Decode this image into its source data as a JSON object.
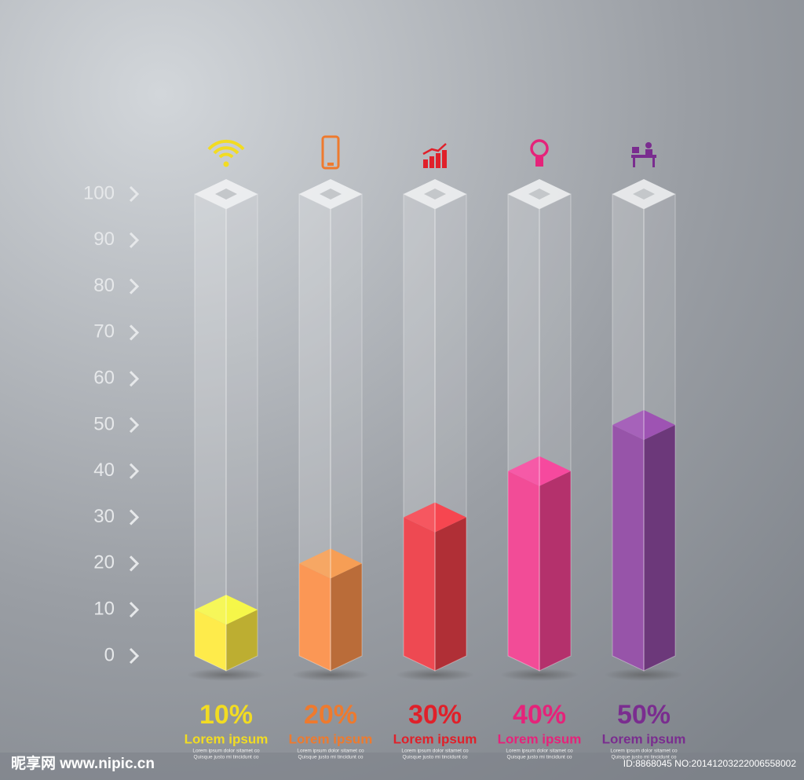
{
  "chart_data": {
    "type": "bar",
    "categories": [
      "Lorem ipsum",
      "Lorem ipsum",
      "Lorem ipsum",
      "Lorem ipsum",
      "Lorem ipsum"
    ],
    "values": [
      10,
      20,
      30,
      40,
      50
    ],
    "value_labels": [
      "10%",
      "20%",
      "30%",
      "40%",
      "50%"
    ],
    "colors": [
      "#f2dc22",
      "#ee7a2e",
      "#e0202a",
      "#e5237a",
      "#7a2d8f"
    ],
    "descriptions": [
      [
        "Lorem ipsum dolor sitamet co",
        "Quisque justo mi tincidunt co"
      ],
      [
        "Lorem ipsum dolor sitamet co",
        "Quisque justo mi tincidunt co"
      ],
      [
        "Lorem ipsum dolor sitamet co",
        "Quisque justo mi tincidunt co"
      ],
      [
        "Lorem ipsum dolor sitamet co",
        "Quisque justo mi tincidunt co"
      ],
      [
        "Lorem ipsum dolor sitamet co",
        "Quisque justo mi tincidunt co"
      ]
    ],
    "ylim": [
      0,
      100
    ],
    "yticks": [
      0,
      10,
      20,
      30,
      40,
      50,
      60,
      70,
      80,
      90,
      100
    ]
  },
  "watermark": {
    "site": "昵享网 www.nipic.cn",
    "id": "ID:8868045 NO:20141203222006558002"
  }
}
